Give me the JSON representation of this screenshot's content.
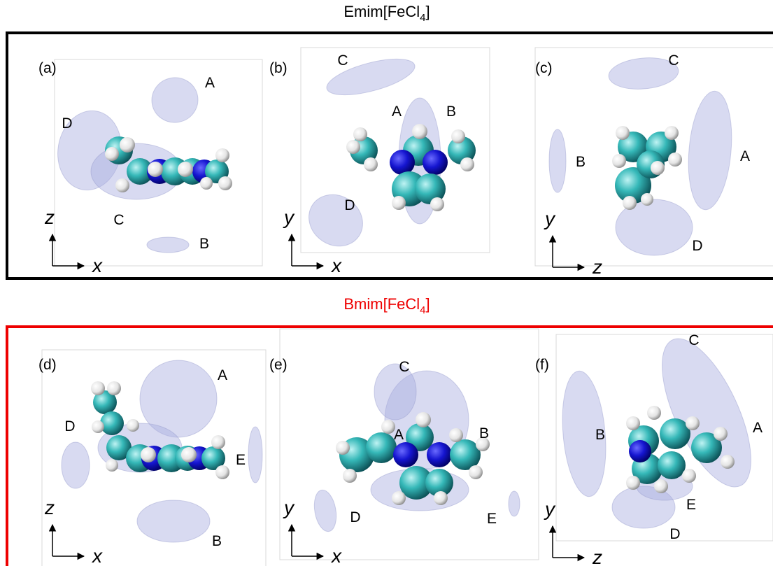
{
  "figure": {
    "rows": [
      {
        "title": {
          "prefix": "Emim[FeCl",
          "subscript": "4",
          "suffix": "]"
        },
        "panels": [
          {
            "label": "(a)",
            "axes": {
              "vertical": "z",
              "horizontal": "x"
            },
            "lobes": [
              "A",
              "D",
              "C",
              "B"
            ]
          },
          {
            "label": "(b)",
            "axes": {
              "vertical": "y",
              "horizontal": "x"
            },
            "lobes": [
              "C",
              "A",
              "B",
              "D"
            ]
          },
          {
            "label": "(c)",
            "axes": {
              "vertical": "y",
              "horizontal": "z"
            },
            "lobes": [
              "C",
              "B",
              "A",
              "D"
            ]
          }
        ]
      },
      {
        "title": {
          "prefix": "Bmim[FeCl",
          "subscript": "4",
          "suffix": "]"
        },
        "panels": [
          {
            "label": "(d)",
            "axes": {
              "vertical": "z",
              "horizontal": "x"
            },
            "lobes": [
              "A",
              "D",
              "E",
              "B"
            ]
          },
          {
            "label": "(e)",
            "axes": {
              "vertical": "y",
              "horizontal": "x"
            },
            "lobes": [
              "C",
              "A",
              "B",
              "D",
              "E"
            ]
          },
          {
            "label": "(f)",
            "axes": {
              "vertical": "y",
              "horizontal": "z"
            },
            "lobes": [
              "C",
              "B",
              "A",
              "E",
              "D"
            ]
          }
        ]
      }
    ]
  }
}
